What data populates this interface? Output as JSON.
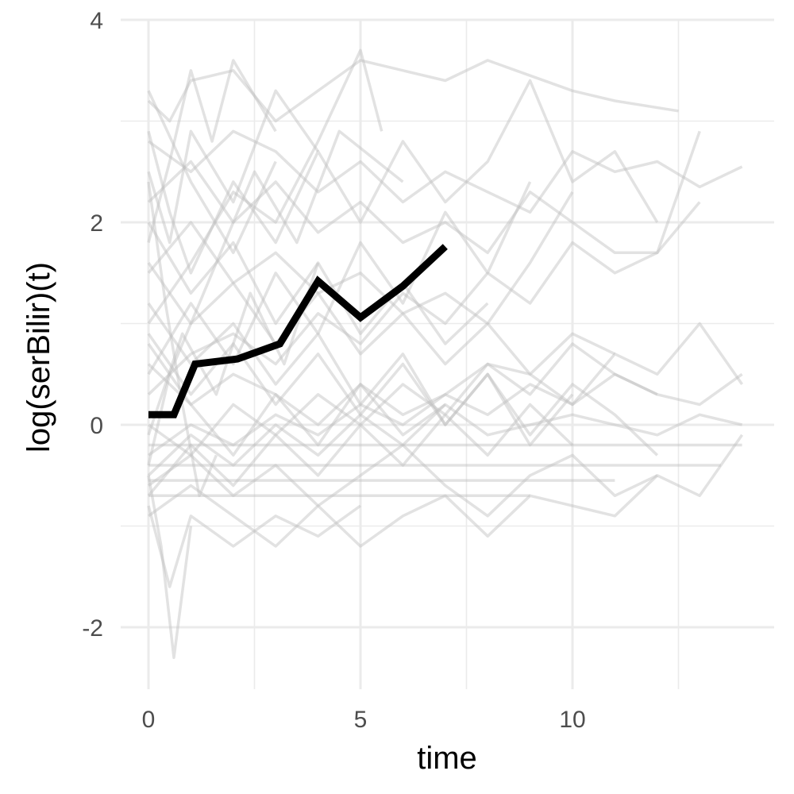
{
  "chart_data": {
    "type": "line",
    "title": "",
    "xlabel": "time",
    "ylabel": "log(serBilir)(t)",
    "xlim": [
      -0.6,
      14.8
    ],
    "ylim": [
      -2.6,
      4.0
    ],
    "x_ticks": [
      {
        "value": 0,
        "label": "0"
      },
      {
        "value": 5,
        "label": "5"
      },
      {
        "value": 10,
        "label": "10"
      }
    ],
    "y_ticks": [
      {
        "value": -2,
        "label": "-2"
      },
      {
        "value": 0,
        "label": "0"
      },
      {
        "value": 2,
        "label": "2"
      },
      {
        "value": 4,
        "label": "4"
      }
    ],
    "x_minor": [
      2.5,
      7.5,
      12.5
    ],
    "y_minor": [
      -1,
      1,
      3
    ],
    "grid": true,
    "colors": {
      "grid": "#ebebeb",
      "background_series": "#bebebe",
      "highlight_series": "#000000"
    },
    "highlight": {
      "x": [
        0,
        0.6,
        1.1,
        2.1,
        3.1,
        4.0,
        5.0,
        6.0,
        7.0
      ],
      "y": [
        0.1,
        0.1,
        0.6,
        0.65,
        0.8,
        1.42,
        1.06,
        1.37,
        1.76
      ]
    },
    "background_series": [
      {
        "x": [
          0,
          0.5,
          1.0,
          2.0,
          3.0,
          5.0,
          7.0,
          8.0,
          10.0,
          11.0,
          12.5
        ],
        "y": [
          3.2,
          3.0,
          3.4,
          3.5,
          3.0,
          3.6,
          3.4,
          3.6,
          3.3,
          3.2,
          3.1
        ]
      },
      {
        "x": [
          0,
          1.0,
          2.0,
          3.0,
          4.0,
          5.0,
          6.0,
          7.0,
          8.0,
          9.0,
          10.0,
          11.0,
          12.0,
          13.0,
          14.0
        ],
        "y": [
          2.8,
          2.5,
          2.9,
          2.7,
          2.3,
          2.6,
          2.2,
          2.5,
          2.3,
          2.1,
          2.7,
          2.5,
          2.6,
          2.35,
          2.55
        ]
      },
      {
        "x": [
          0,
          1.0,
          2.0,
          3.0,
          4.0,
          5.0,
          6.0,
          7.0,
          8.0,
          9.0,
          10.0,
          11.0,
          12.0,
          13.0
        ],
        "y": [
          2.2,
          2.6,
          2.0,
          2.4,
          1.9,
          2.2,
          1.8,
          2.0,
          1.7,
          2.3,
          2.0,
          1.7,
          1.7,
          2.9
        ]
      },
      {
        "x": [
          0,
          1.0,
          2.0,
          3.0,
          4.0,
          5.0,
          6.0,
          7.0,
          8.0,
          9.0,
          10.0
        ],
        "y": [
          1.5,
          2.0,
          1.4,
          1.7,
          1.3,
          1.5,
          1.1,
          1.3,
          1.0,
          1.6,
          2.3
        ]
      },
      {
        "x": [
          0,
          1.0,
          2.0,
          3.0,
          4.0,
          5.0,
          6.0,
          7.0,
          8.0,
          9.0,
          10.0,
          11.0,
          12.0,
          13.0,
          14.0
        ],
        "y": [
          0.6,
          0.2,
          0.5,
          0.3,
          0.0,
          0.4,
          0.1,
          0.3,
          0.6,
          0.5,
          0.2,
          0.7,
          0.5,
          1.0,
          0.4
        ]
      },
      {
        "x": [
          0,
          1.0,
          2.0,
          3.0,
          4.0,
          5.0,
          6.0,
          7.0,
          8.0,
          9.0,
          10.0,
          11.0,
          12.0,
          13.0
        ],
        "y": [
          0.3,
          0.7,
          0.9,
          0.6,
          1.1,
          0.8,
          1.3,
          1.0,
          1.5,
          1.2,
          1.8,
          1.5,
          1.7,
          2.2
        ]
      },
      {
        "x": [
          0,
          1.0,
          2.0,
          3.0,
          4.0,
          5.0,
          6.0,
          7.0,
          8.0,
          9.0,
          10.0,
          11.0,
          12.0,
          13.0,
          14.0
        ],
        "y": [
          -0.3,
          0.0,
          -0.2,
          0.1,
          -0.1,
          0.2,
          0.0,
          0.3,
          0.1,
          0.4,
          0.2,
          0.5,
          0.3,
          0.2,
          0.5
        ]
      },
      {
        "x": [
          0,
          1.0,
          2.0,
          3.0,
          5.0,
          7.0,
          9.0,
          11.0,
          13.0,
          14.0
        ],
        "y": [
          -0.2,
          -0.2,
          -0.2,
          -0.2,
          -0.2,
          -0.2,
          -0.2,
          -0.2,
          -0.2,
          -0.2
        ]
      },
      {
        "x": [
          0,
          2.0,
          4.0,
          6.0,
          8.0,
          10.0,
          12.0,
          13.5
        ],
        "y": [
          -0.4,
          -0.4,
          -0.4,
          -0.4,
          -0.4,
          -0.4,
          -0.4,
          -0.4
        ]
      },
      {
        "x": [
          0,
          1.0,
          2.0,
          3.0,
          4.0,
          5.0,
          6.0,
          7.0,
          8.0,
          9.0,
          10.0,
          11.0
        ],
        "y": [
          -0.55,
          -0.55,
          -0.55,
          -0.55,
          -0.55,
          -0.55,
          -0.55,
          -0.55,
          -0.55,
          -0.55,
          -0.55,
          -0.55
        ]
      },
      {
        "x": [
          0,
          2.0,
          4.0,
          6.0,
          8.0,
          9.0
        ],
        "y": [
          -0.7,
          -0.7,
          -0.7,
          -0.7,
          -0.7,
          -0.7
        ]
      },
      {
        "x": [
          0,
          1.0,
          2.0,
          3.0,
          4.0,
          5.0,
          6.0,
          7.0,
          8.0,
          9.0,
          10.0,
          11.0,
          12.0,
          13.0,
          14.0
        ],
        "y": [
          -0.6,
          -0.3,
          -0.7,
          -0.4,
          -0.8,
          -0.5,
          -0.2,
          -0.6,
          -0.9,
          -0.5,
          -0.3,
          -0.7,
          -0.5,
          -0.7,
          -0.1
        ]
      },
      {
        "x": [
          0,
          1.0,
          2.0,
          3.0,
          4.0,
          5.0,
          6.0,
          7.0,
          8.0,
          9.0,
          10.0,
          11.0,
          12.0
        ],
        "y": [
          -0.9,
          -0.6,
          -0.9,
          -1.2,
          -0.8,
          -1.2,
          -0.9,
          -0.7,
          -1.1,
          -0.7,
          -0.8,
          -0.9,
          -0.5
        ]
      },
      {
        "x": [
          0,
          0.5,
          1.0,
          2.0,
          3.0,
          4.0,
          5.0
        ],
        "y": [
          -0.8,
          -1.6,
          -0.9,
          -1.2,
          -0.9,
          -1.1,
          -0.8
        ]
      },
      {
        "x": [
          0,
          0.3,
          0.6,
          1.0
        ],
        "y": [
          -0.5,
          -1.2,
          -2.3,
          -1.0
        ]
      },
      {
        "x": [
          0,
          0.5,
          1.0,
          1.5,
          2.0,
          3.0
        ],
        "y": [
          1.8,
          2.6,
          3.5,
          2.8,
          3.6,
          2.9
        ]
      },
      {
        "x": [
          0,
          0.5,
          1.0,
          2.0,
          3.0,
          4.0
        ],
        "y": [
          2.5,
          1.8,
          2.9,
          2.2,
          3.3,
          2.7
        ]
      },
      {
        "x": [
          0,
          1.0,
          2.0,
          3.0,
          4.0,
          5.0,
          5.5
        ],
        "y": [
          1.0,
          1.6,
          2.3,
          2.0,
          2.8,
          3.7,
          2.9
        ]
      },
      {
        "x": [
          0,
          0.5,
          1.5,
          2.5,
          3.5,
          4.5,
          6.0
        ],
        "y": [
          -0.4,
          0.5,
          1.5,
          2.5,
          1.8,
          2.9,
          2.4
        ]
      },
      {
        "x": [
          0,
          1.0,
          2.0,
          3.0,
          4.0,
          5.0,
          6.0,
          7.0
        ],
        "y": [
          0.8,
          0.2,
          -0.3,
          0.3,
          -0.2,
          0.4,
          -0.1,
          0.2
        ]
      },
      {
        "x": [
          0,
          1.0,
          2.0,
          3.0,
          4.0,
          5.0,
          6.0,
          7.0,
          8.0,
          9.0,
          10.0
        ],
        "y": [
          1.2,
          0.6,
          1.0,
          0.4,
          0.9,
          0.2,
          0.7,
          0.0,
          0.5,
          -0.2,
          0.3
        ]
      },
      {
        "x": [
          0,
          1.0,
          2.0,
          3.0,
          4.0,
          5.0,
          6.0,
          7.0,
          8.0
        ],
        "y": [
          2.0,
          1.3,
          1.8,
          1.0,
          1.6,
          0.9,
          1.4,
          0.8,
          1.2
        ]
      },
      {
        "x": [
          0,
          0.8,
          1.6,
          2.4,
          3.2,
          4.0
        ],
        "y": [
          -0.1,
          0.9,
          0.3,
          1.3,
          0.6,
          1.6
        ]
      },
      {
        "x": [
          0,
          1.0,
          2.0,
          3.0,
          4.0,
          5.0,
          6.0,
          7.0,
          8.0,
          9.0,
          10.0,
          11.0,
          12.0
        ],
        "y": [
          0.0,
          -0.3,
          0.2,
          -0.1,
          0.3,
          0.0,
          0.4,
          0.1,
          0.6,
          0.3,
          0.8,
          0.5,
          0.3
        ]
      },
      {
        "x": [
          0,
          1.0,
          2.0,
          3.0,
          4.0,
          5.0,
          6.0,
          7.0,
          8.0,
          9.0,
          10.0,
          11.0
        ],
        "y": [
          1.6,
          1.0,
          1.4,
          0.8,
          1.3,
          0.7,
          1.1,
          0.6,
          1.0,
          0.5,
          0.9,
          0.7
        ]
      },
      {
        "x": [
          0,
          0.5,
          1.0,
          2.0,
          3.0,
          4.0,
          5.0,
          6.0,
          7.0,
          8.0,
          9.0,
          10.0,
          11.0,
          12.0
        ],
        "y": [
          2.9,
          2.1,
          1.5,
          2.4,
          1.8,
          2.7,
          2.0,
          2.8,
          2.2,
          2.6,
          3.4,
          2.4,
          2.7,
          2.0
        ]
      },
      {
        "x": [
          0,
          1.0,
          2.0,
          3.0,
          4.0,
          5.0,
          6.0,
          7.0,
          8.0,
          9.0,
          10.0
        ],
        "y": [
          -0.7,
          -0.2,
          -0.6,
          -0.1,
          -0.5,
          0.0,
          -0.4,
          0.1,
          -0.3,
          0.2,
          -0.2
        ]
      },
      {
        "x": [
          0,
          1.0,
          2.0,
          3.0,
          4.0,
          5.0,
          6.0,
          7.0,
          8.0,
          9.0
        ],
        "y": [
          0.5,
          1.2,
          0.6,
          1.5,
          0.9,
          1.8,
          1.2,
          2.1,
          1.5,
          2.4
        ]
      },
      {
        "x": [
          0,
          1.0,
          2.0,
          3.0,
          4.0,
          5.0,
          6.0,
          7.0,
          8.0,
          9.0,
          10.0,
          11.0,
          12.0,
          13.0,
          14.0
        ],
        "y": [
          -0.5,
          -0.1,
          -0.4,
          0.0,
          -0.3,
          0.1,
          -0.2,
          0.2,
          -0.1,
          0.0,
          0.1,
          0.0,
          -0.1,
          0.1,
          0.0
        ]
      },
      {
        "x": [
          0,
          1.0,
          2.0,
          3.0
        ],
        "y": [
          3.3,
          2.4,
          1.7,
          2.6
        ]
      },
      {
        "x": [
          0,
          0.4,
          0.8,
          1.2,
          1.6
        ],
        "y": [
          2.4,
          1.2,
          0.2,
          -0.7,
          -0.3
        ]
      },
      {
        "x": [
          0,
          1.0,
          2.0,
          3.0,
          4.0,
          5.0,
          6.0,
          7.0,
          8.0,
          9.0,
          10.0,
          11.0,
          12.0
        ],
        "y": [
          0.9,
          0.3,
          0.8,
          0.2,
          0.7,
          0.1,
          0.6,
          0.0,
          0.5,
          -0.1,
          0.4,
          0.1,
          -0.3
        ]
      }
    ]
  }
}
